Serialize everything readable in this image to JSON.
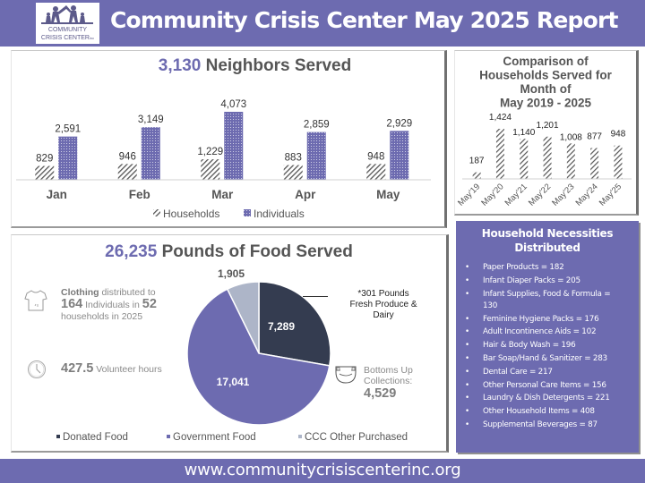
{
  "header": {
    "title": "Community Crisis Center May 2025 Report",
    "logo_line1": "COMMUNITY",
    "logo_line2": "CRISIS CENTER",
    "logo_suffix": "inc"
  },
  "colors": {
    "brand": "#6d6bb0",
    "title_gray": "#555555",
    "donated": "#343c50",
    "government": "#6d6bb0",
    "purchased": "#adb5c8"
  },
  "neighbors": {
    "total": "3,130",
    "title_suffix": "Neighbors Served"
  },
  "food": {
    "total": "26,235",
    "title_suffix": "Pounds of Food Served",
    "produce_note_line1": "*301 Pounds",
    "produce_note_line2": "Fresh Produce &",
    "produce_note_line3": "Dairy",
    "clothing_word": "Clothing",
    "clothing_text1": "distributed to",
    "clothing_individuals": "164",
    "clothing_text2": "Individuals in",
    "clothing_households": "52",
    "clothing_text3": "households in 2025",
    "volunteer_hours": "427.5",
    "volunteer_label": "Volunteer hours",
    "bottoms_line1": "Bottoms Up",
    "bottoms_line2": "Collections:",
    "bottoms_value": "4,529",
    "icons": {
      "clothing": "tshirt-icon",
      "volunteer": "clock-icon",
      "bottoms": "diaper-icon"
    }
  },
  "necessities": {
    "title_line1": "Household Necessities",
    "title_line2": "Distributed",
    "bullet": "•",
    "items": [
      {
        "text": "Paper Products = 182"
      },
      {
        "text": "Infant Diaper Packs = 205"
      },
      {
        "text": "Infant Supplies, Food & Formula =",
        "text2": "130"
      },
      {
        "text": "Feminine Hygiene Packs = 176"
      },
      {
        "text": "Adult Incontinence Aids = 102"
      },
      {
        "text": "Hair & Body Wash = 196"
      },
      {
        "text": "Bar Soap/Hand & Sanitizer = 283"
      },
      {
        "text": "Dental Care = 217"
      },
      {
        "text": "Other Personal Care Items = 156"
      },
      {
        "text": "Laundry & Dish Detergents = 221"
      },
      {
        "text": "Other Household Items = 408"
      },
      {
        "text": "Supplemental Beverages = 87"
      }
    ]
  },
  "footer": {
    "url": "www.communitycrisiscenterinc.org"
  },
  "chart_data": [
    {
      "type": "bar",
      "title": "3,130 Neighbors Served",
      "categories": [
        "Jan",
        "Feb",
        "Mar",
        "Apr",
        "May"
      ],
      "series": [
        {
          "name": "Households",
          "values": [
            829,
            946,
            1229,
            883,
            948
          ],
          "labels": [
            "829",
            "946",
            "1,229",
            "883",
            "948"
          ],
          "pattern": "diagonal-hatch"
        },
        {
          "name": "Individuals",
          "values": [
            2591,
            3149,
            4073,
            2859,
            2929
          ],
          "labels": [
            "2,591",
            "3,149",
            "4,073",
            "2,859",
            "2,929"
          ],
          "pattern": "dotted-purple"
        }
      ],
      "ylim": [
        0,
        4500
      ],
      "grid": false,
      "legend": "bottom"
    },
    {
      "type": "bar",
      "title_lines": [
        "Comparison of",
        "Households Served for",
        "Month of",
        "May 2019 - 2025"
      ],
      "categories": [
        "May'19",
        "May'20",
        "May'21",
        "May'22",
        "May'23",
        "May'24",
        "May'25"
      ],
      "values": [
        187,
        1424,
        1140,
        1201,
        1008,
        877,
        948
      ],
      "labels": [
        "187",
        "1,424",
        "1,140",
        "1,201",
        "1,008",
        "877",
        "948"
      ],
      "ylim": [
        0,
        1800
      ],
      "grid": false,
      "legend": "none"
    },
    {
      "type": "pie",
      "title": "26,235 Pounds of Food Served",
      "slices": [
        {
          "name": "Donated Food",
          "value": 7289,
          "label": "7,289"
        },
        {
          "name": "Government Food",
          "value": 17041,
          "label": "17,041"
        },
        {
          "name": "CCC Other Purchased",
          "value": 1905,
          "label": "1,905"
        }
      ],
      "legend": "bottom"
    }
  ]
}
